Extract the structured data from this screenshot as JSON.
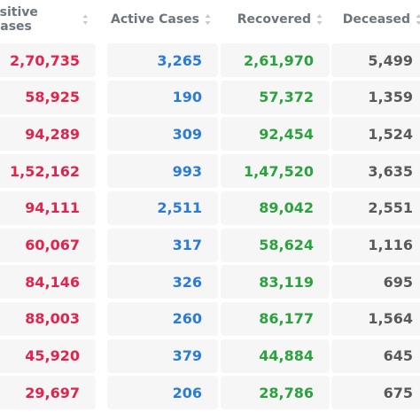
{
  "table": {
    "headers": [
      "ositive Cases",
      "Active Cases",
      "Recovered",
      "Deceased"
    ],
    "rows": [
      [
        "2,70,735",
        "3,265",
        "2,61,970",
        "5,499"
      ],
      [
        "58,925",
        "190",
        "57,372",
        "1,359"
      ],
      [
        "94,289",
        "309",
        "92,454",
        "1,524"
      ],
      [
        "1,52,162",
        "993",
        "1,47,520",
        "3,635"
      ],
      [
        "94,111",
        "2,511",
        "89,042",
        "2,551"
      ],
      [
        "60,067",
        "317",
        "58,624",
        "1,116"
      ],
      [
        "84,146",
        "326",
        "83,119",
        "695"
      ],
      [
        "88,003",
        "260",
        "86,177",
        "1,564"
      ],
      [
        "45,920",
        "379",
        "44,884",
        "645"
      ],
      [
        "29,697",
        "206",
        "28,786",
        "675"
      ]
    ]
  }
}
